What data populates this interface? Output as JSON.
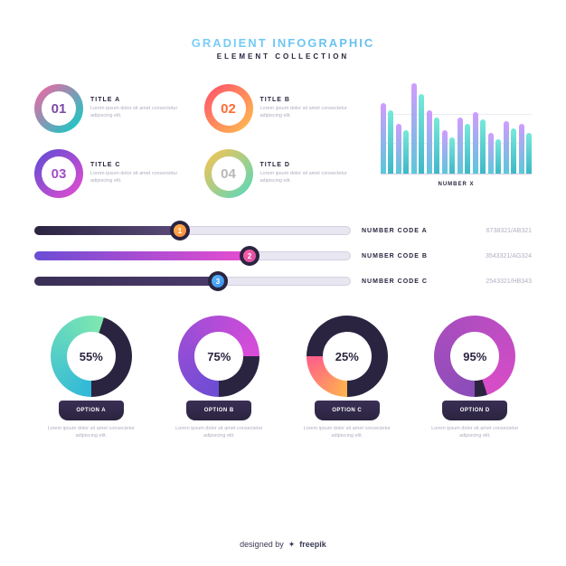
{
  "header": {
    "title": "GRADIENT INFOGRAPHIC",
    "subtitle": "ELEMENT COLLECTION",
    "title_gradient": [
      "#8fd9ff",
      "#4db3e8"
    ]
  },
  "lorem": "Lorem ipsum dolor sit amet consectetur adipiscing elit.",
  "circles": [
    {
      "num": "01",
      "title": "TITLE A",
      "gradient": [
        "#ff5fa2",
        "#00d4c8"
      ],
      "num_color": "#7b4aa8"
    },
    {
      "num": "02",
      "title": "TITLE B",
      "gradient": [
        "#ff4d6d",
        "#ffc24d"
      ],
      "num_color": "#ff6b35"
    },
    {
      "num": "03",
      "title": "TITLE C",
      "gradient": [
        "#5b4dd4",
        "#e84dd0"
      ],
      "num_color": "#a04dc8"
    },
    {
      "num": "04",
      "title": "TITLE D",
      "gradient": [
        "#ffc24d",
        "#52d9c0"
      ],
      "num_color": "#b8b8b8"
    }
  ],
  "barchart": {
    "label": "NUMBER X",
    "bars": [
      {
        "a": 78,
        "b": 70
      },
      {
        "a": 55,
        "b": 48
      },
      {
        "a": 100,
        "b": 88
      },
      {
        "a": 70,
        "b": 62
      },
      {
        "a": 48,
        "b": 40
      },
      {
        "a": 62,
        "b": 55
      },
      {
        "a": 68,
        "b": 60
      },
      {
        "a": 45,
        "b": 38
      },
      {
        "a": 58,
        "b": 50
      },
      {
        "a": 55,
        "b": 45
      }
    ],
    "bar_a_gradient": [
      "#d19bff",
      "#5bc8d9"
    ],
    "bar_b_gradient": [
      "#78e8d9",
      "#3fb8c8"
    ],
    "grid_color": "#ececf3",
    "axis_color": "#d0cfe0"
  },
  "sliders": [
    {
      "n": "1",
      "label": "NUMBER CODE A",
      "code": "6738321/AB321",
      "percent": 46,
      "fill_gradient": [
        "#2b2440",
        "#5a4a7a"
      ],
      "knob_gradient": [
        "#ffb34d",
        "#ff8a3d"
      ]
    },
    {
      "n": "2",
      "label": "NUMBER CODE B",
      "code": "3543321/AG324",
      "percent": 68,
      "fill_gradient": [
        "#6b4dd4",
        "#e84dd0"
      ],
      "knob_gradient": [
        "#ff5fa2",
        "#d44da8"
      ]
    },
    {
      "n": "3",
      "label": "NUMBER CODE C",
      "code": "2543321/HB343",
      "percent": 58,
      "fill_gradient": [
        "#3a2f55",
        "#4a3a6a"
      ],
      "knob_gradient": [
        "#5bb8ff",
        "#3a8fe8"
      ]
    }
  ],
  "donuts": [
    {
      "percent": "55%",
      "label": "OPTION A",
      "val": 55,
      "main": [
        "#30b8d9",
        "#7fe8b0"
      ],
      "rest": "#2b2440"
    },
    {
      "percent": "75%",
      "label": "OPTION B",
      "val": 75,
      "main": [
        "#6b4dd4",
        "#d94dd9"
      ],
      "rest": "#2b2440"
    },
    {
      "percent": "25%",
      "label": "OPTION C",
      "val": 25,
      "main": [
        "#ffb34d",
        "#ff5f8a"
      ],
      "rest": "#2b2440"
    },
    {
      "percent": "95%",
      "label": "OPTION D",
      "val": 95,
      "main": [
        "#8a4db8",
        "#d94dc8"
      ],
      "rest": "#2b2440"
    }
  ],
  "donut_tab_gradient": [
    "#3a2f55",
    "#2b2440"
  ],
  "footer": {
    "prefix": "designed by",
    "name": "freepik"
  }
}
